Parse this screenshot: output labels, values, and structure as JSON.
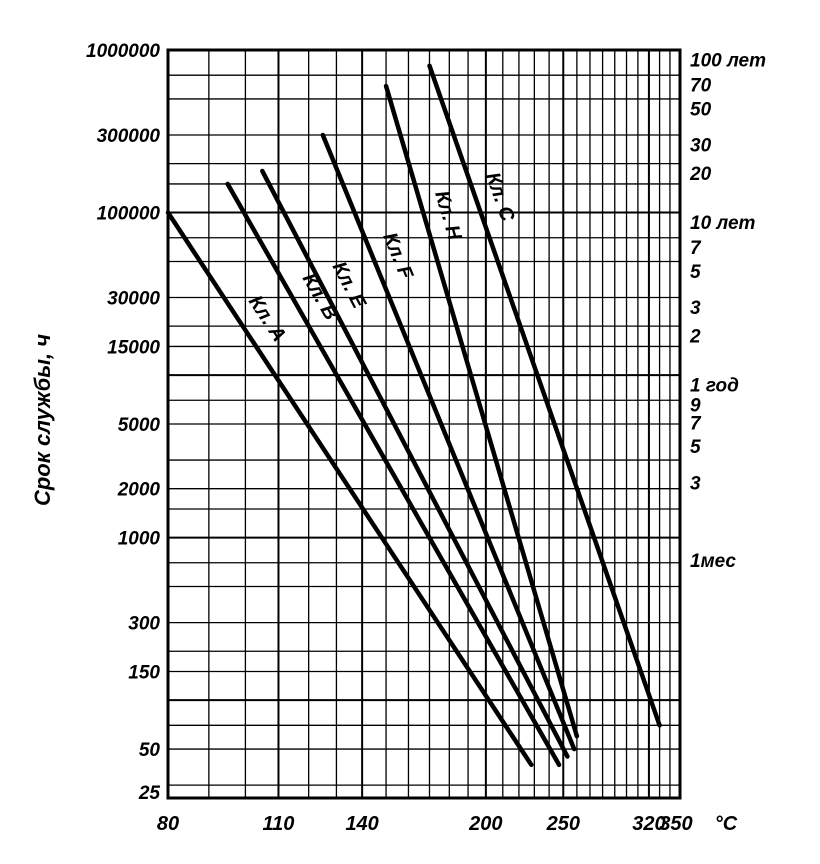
{
  "chart_data": {
    "type": "line",
    "title": "",
    "ylabel": "Срок службы, ч",
    "xlabel": "",
    "x_unit_label": "°C",
    "y_scale": "log",
    "xlim": [
      80,
      350
    ],
    "ylim": [
      25,
      1000000
    ],
    "x_tick_labels": [
      "80",
      "110",
      "140",
      "200",
      "250",
      "320",
      "350"
    ],
    "x_tick_values": [
      80,
      110,
      140,
      200,
      250,
      320,
      350
    ],
    "y_tick_labels": [
      "1000000",
      "300000",
      "100000",
      "30000",
      "15000",
      "5000",
      "2000",
      "1000",
      "300",
      "150",
      "50",
      "25"
    ],
    "y_tick_values": [
      1000000,
      300000,
      100000,
      30000,
      15000,
      5000,
      2000,
      1000,
      300,
      150,
      50,
      25
    ],
    "right_axis_labels": [
      {
        "text": "100 лет",
        "hours": 876000
      },
      {
        "text": "70",
        "hours": 613200
      },
      {
        "text": "50",
        "hours": 438000
      },
      {
        "text": "30",
        "hours": 262800
      },
      {
        "text": "20",
        "hours": 175200
      },
      {
        "text": "10 лет",
        "hours": 87600
      },
      {
        "text": "7",
        "hours": 61320
      },
      {
        "text": "5",
        "hours": 43800
      },
      {
        "text": "3",
        "hours": 26280
      },
      {
        "text": "2",
        "hours": 17520
      },
      {
        "text": "1 год",
        "hours": 8760
      },
      {
        "text": "9",
        "hours": 6570
      },
      {
        "text": "7",
        "hours": 5110
      },
      {
        "text": "5",
        "hours": 3650
      },
      {
        "text": "3",
        "hours": 2190
      },
      {
        "text": "1мес",
        "hours": 730
      }
    ],
    "grid": true,
    "series": [
      {
        "name": "Кл. А",
        "x": [
          80,
          228
        ],
        "y": [
          100000,
          40
        ]
      },
      {
        "name": "Кл. В",
        "x": [
          95,
          247
        ],
        "y": [
          150000,
          40
        ]
      },
      {
        "name": "Кл. Е",
        "x": [
          105,
          253
        ],
        "y": [
          180000,
          45
        ]
      },
      {
        "name": "Кл. F",
        "x": [
          125,
          258
        ],
        "y": [
          300000,
          50
        ]
      },
      {
        "name": "Кл. Н",
        "x": [
          150,
          260
        ],
        "y": [
          600000,
          60
        ]
      },
      {
        "name": "Кл. С",
        "x": [
          170,
          330
        ],
        "y": [
          800000,
          70
        ]
      }
    ]
  }
}
